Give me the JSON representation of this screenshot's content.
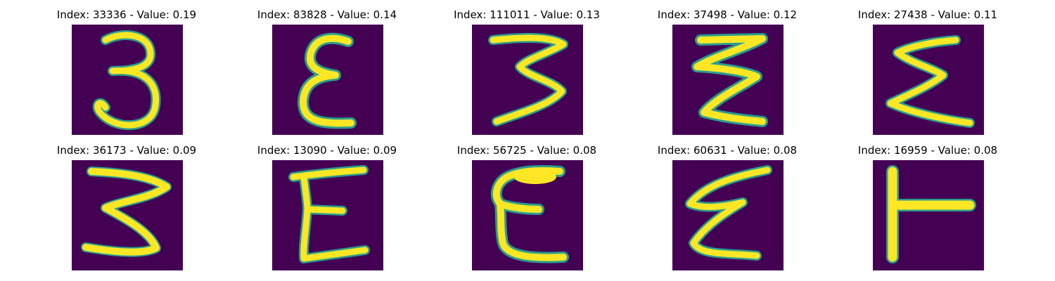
{
  "colors": {
    "background": "#440154",
    "stroke_core": "#fde725",
    "stroke_edge": "#2a9d8f"
  },
  "panels": [
    {
      "title": "Index: 33336 - Value: 0.19",
      "glyph": "3"
    },
    {
      "title": "Index: 83828 - Value: 0.14",
      "glyph": "E"
    },
    {
      "title": "Index: 111011 - Value: 0.13",
      "glyph": "3"
    },
    {
      "title": "Index: 37498 - Value: 0.12",
      "glyph": "3"
    },
    {
      "title": "Index: 27438 - Value: 0.11",
      "glyph": "Σ"
    },
    {
      "title": "Index: 36173 - Value: 0.09",
      "glyph": "3"
    },
    {
      "title": "Index: 13090 - Value: 0.09",
      "glyph": "E"
    },
    {
      "title": "Index: 56725 - Value: 0.08",
      "glyph": "E"
    },
    {
      "title": "Index: 60631 - Value: 0.08",
      "glyph": "E"
    },
    {
      "title": "Index: 16959 - Value: 0.08",
      "glyph": "T"
    }
  ]
}
